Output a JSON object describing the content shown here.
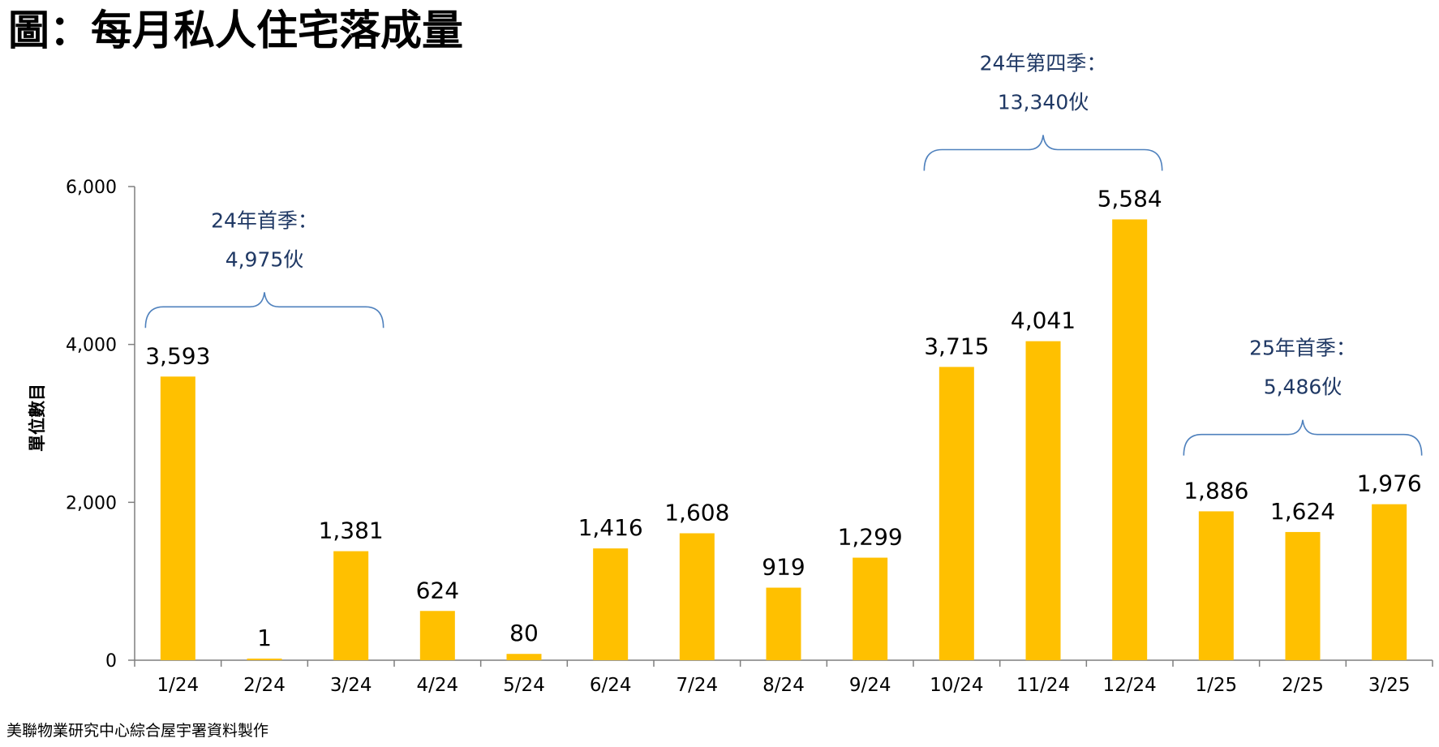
{
  "title": "圖：每月私人住宅落成量",
  "source": "美聯物業研究中心綜合屋宇署資料製作",
  "colors": {
    "bar": "#FFC000",
    "axis": "#7F7F7F",
    "bracket": "#4F81BD",
    "annotation": "#1F3864",
    "label": "#000000"
  },
  "chart_data": {
    "type": "bar",
    "title": "",
    "xlabel": "",
    "ylabel": "單位數目",
    "ylim": [
      0,
      6000
    ],
    "yticks": [
      0,
      2000,
      4000,
      6000
    ],
    "ytick_labels": [
      "0",
      "2,000",
      "4,000",
      "6,000"
    ],
    "grid": false,
    "categories": [
      "1/24",
      "2/24",
      "3/24",
      "4/24",
      "5/24",
      "6/24",
      "7/24",
      "8/24",
      "9/24",
      "10/24",
      "11/24",
      "12/24",
      "1/25",
      "2/25",
      "3/25"
    ],
    "values": [
      3593,
      1,
      1381,
      624,
      80,
      1416,
      1608,
      919,
      1299,
      3715,
      4041,
      5584,
      1886,
      1624,
      1976
    ],
    "value_labels": [
      "3,593",
      "1",
      "1,381",
      "624",
      "80",
      "1,416",
      "1,608",
      "919",
      "1,299",
      "3,715",
      "4,041",
      "5,584",
      "1,886",
      "1,624",
      "1,976"
    ],
    "annotations": [
      {
        "from": 0,
        "to": 2,
        "line1": "24年首季：",
        "line2": "4,975伙"
      },
      {
        "from": 9,
        "to": 11,
        "line1": "24年第四季：",
        "line2": "13,340伙"
      },
      {
        "from": 12,
        "to": 14,
        "line1": "25年首季：",
        "line2": "5,486伙"
      }
    ]
  }
}
